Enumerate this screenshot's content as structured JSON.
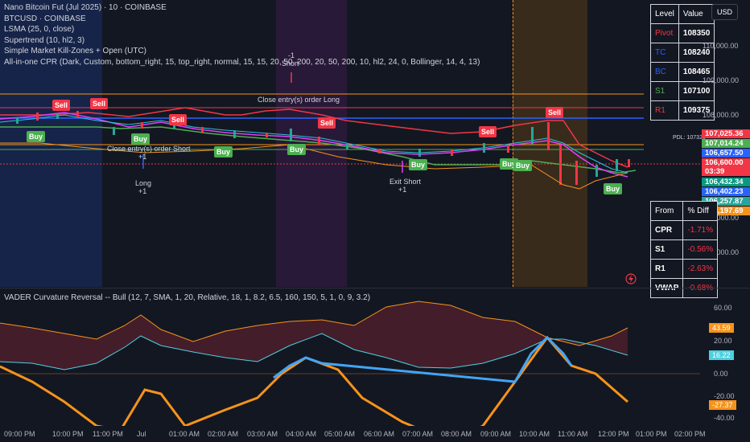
{
  "header": {
    "lines": [
      "Nano Bitcoin Fut (Jul 2025) · 10 · COINBASE",
      "BTCUSD · COINBASE",
      "LSMA (25, 0, close)",
      "Supertrend (10, hl2, 3)",
      "Simple Market Kill-Zones + Open (UTC)",
      "All-in-one CPR (Dark, Custom, bottom_right, 15, top_right, normal, 15, 15, 20, 50, 200, 20, 50, 200, 10, hl2, 24, 0, Bollinger, 14, 4, 13)"
    ]
  },
  "currency_button": "USD",
  "level_table": {
    "headers": [
      "Level",
      "Value"
    ],
    "rows": [
      {
        "label": "Pivot",
        "value": "108350",
        "color": "#f23645"
      },
      {
        "label": "TC",
        "value": "108240",
        "color": "#2962ff"
      },
      {
        "label": "BC",
        "value": "108465",
        "color": "#2962ff"
      },
      {
        "label": "S1",
        "value": "107100",
        "color": "#4caf50"
      },
      {
        "label": "R1",
        "value": "109375",
        "color": "#f23645"
      }
    ]
  },
  "diff_table": {
    "headers": [
      "From",
      "% Diff"
    ],
    "rows": [
      {
        "label": "CPR",
        "value": "-1.71%"
      },
      {
        "label": "S1",
        "value": "-0.56%"
      },
      {
        "label": "R1",
        "value": "-2.63%"
      },
      {
        "label": "VWAP",
        "value": "-0.68%"
      }
    ]
  },
  "price_axis": [
    "110,000.00",
    "109,000.00",
    "108,000.00",
    "105,000.00",
    "104,000.00"
  ],
  "price_tags": [
    {
      "value": "107,025.36",
      "bg": "#f23645"
    },
    {
      "value": "107,014.24",
      "bg": "#4caf50"
    },
    {
      "value": "106,657.50",
      "bg": "#2962ff"
    },
    {
      "value": "106,600.00",
      "bg": "#f23645"
    },
    {
      "value": "03:39",
      "bg": "#f23645"
    },
    {
      "value": "106,432.34",
      "bg": "#089981"
    },
    {
      "value": "106,402.23",
      "bg": "#2962ff"
    },
    {
      "value": "106,257.87",
      "bg": "#26a69a"
    },
    {
      "value": "106,197.69",
      "bg": "#f7931a"
    }
  ],
  "pdl_label": "PDL: 107325",
  "signals": {
    "sell": "Sell",
    "buy": "Buy",
    "short": "Short",
    "long": "Long",
    "exit_short": "Exit Short",
    "close_long": "Close entry(s) order Long",
    "close_short": "Close entry(s) order Short",
    "plus_one": "+1",
    "minus_one": "-1"
  },
  "osc": {
    "title": "VADER Curvature Reversal -- Bull (12, 7, SMA, 1, 20, Relative, 18, 1, 8.2, 6.5, 160, 150, 5, 1, 0, 9, 3.2)",
    "axis": [
      "60.00",
      "20.00",
      "0.00",
      "-20.00",
      "-40.00"
    ],
    "tags": [
      {
        "value": "43.59",
        "bg": "#f7931a"
      },
      {
        "value": "16.22",
        "bg": "#4dd0e1"
      },
      {
        "value": "-27.37",
        "bg": "#f7931a"
      }
    ]
  },
  "time_axis": [
    "09:00 PM",
    "10:00 PM",
    "11:00 PM",
    "Jul",
    "01:00 AM",
    "02:00 AM",
    "03:00 AM",
    "04:00 AM",
    "05:00 AM",
    "06:00 AM",
    "07:00 AM",
    "08:00 AM",
    "09:00 AM",
    "10:00 AM",
    "11:00 AM",
    "12:00 PM",
    "01:00 PM",
    "02:00 PM"
  ]
}
